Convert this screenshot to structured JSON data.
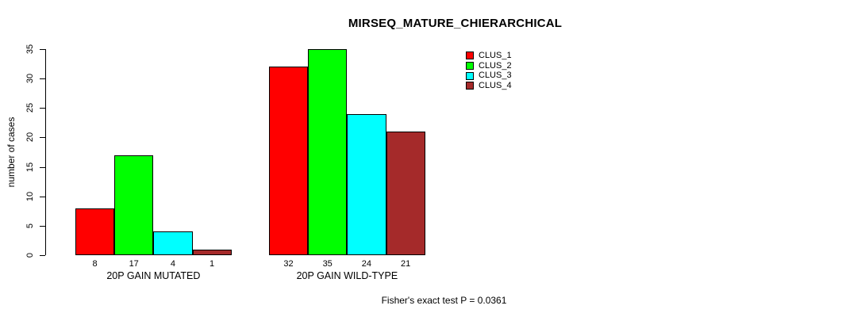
{
  "chart_data": {
    "type": "bar",
    "title": "MIRSEQ_MATURE_CHIERARCHICAL",
    "ylabel": "number of cases",
    "ylim": [
      0,
      35
    ],
    "yticks": [
      0,
      5,
      10,
      15,
      20,
      25,
      30,
      35
    ],
    "categories": [
      "20P GAIN MUTATED",
      "20P GAIN WILD-TYPE"
    ],
    "series": [
      {
        "name": "CLUS_1",
        "color": "#ff0000",
        "values": [
          8,
          32
        ]
      },
      {
        "name": "CLUS_2",
        "color": "#00ff00",
        "values": [
          17,
          35
        ]
      },
      {
        "name": "CLUS_3",
        "color": "#00ffff",
        "values": [
          4,
          24
        ]
      },
      {
        "name": "CLUS_4",
        "color": "#a52a2a",
        "values": [
          1,
          21
        ]
      }
    ],
    "bar_value_labels": [
      [
        8,
        17,
        4,
        1
      ],
      [
        32,
        35,
        24,
        21
      ]
    ],
    "legend_position": "top-right",
    "grid": false
  },
  "footer": {
    "text": "Fisher's exact test P = 0.0361"
  }
}
